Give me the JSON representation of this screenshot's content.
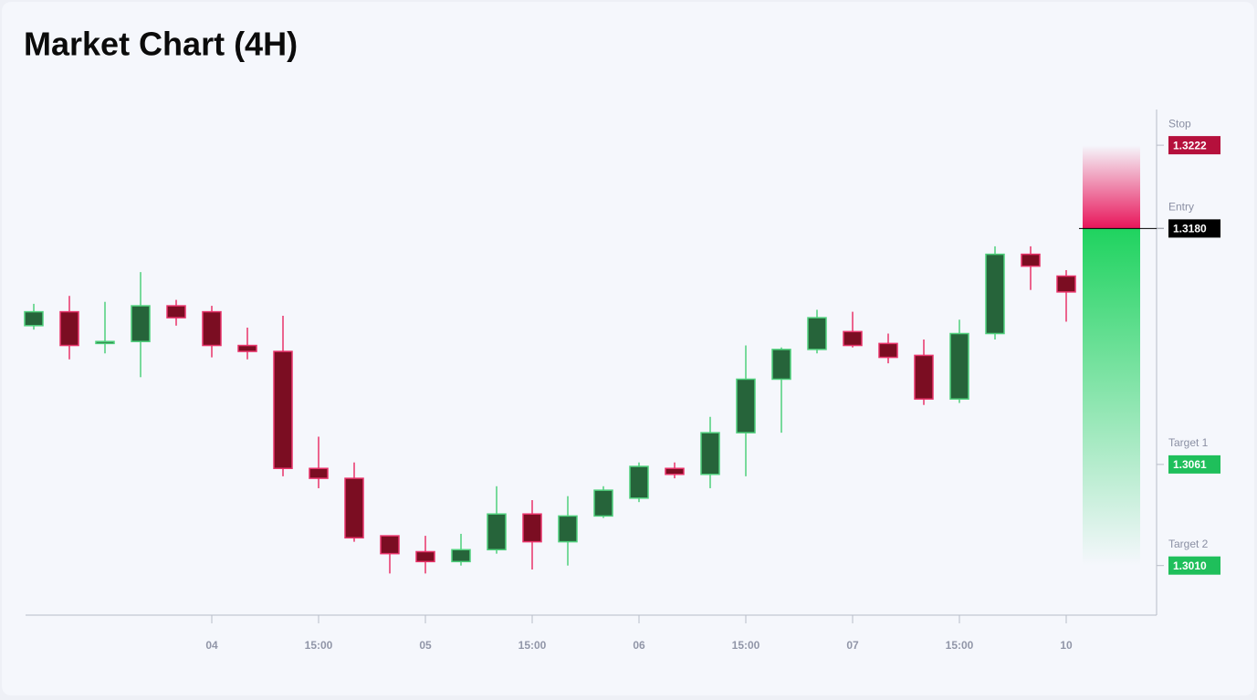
{
  "chart_data": {
    "type": "candlestick",
    "title": "Market Chart (4H)",
    "categories": [
      null,
      null,
      null,
      null,
      null,
      "04",
      null,
      null,
      "15:00",
      null,
      null,
      "05",
      null,
      null,
      "15:00",
      null,
      null,
      "06",
      null,
      null,
      "15:00",
      null,
      null,
      "07",
      null,
      null,
      "15:00",
      null,
      null,
      "10"
    ],
    "open": [
      1.3131,
      1.3138,
      1.3122,
      1.3123,
      1.3141,
      1.3138,
      1.3121,
      1.3118,
      1.3059,
      1.3054,
      1.3025,
      1.3017,
      1.3012,
      1.3018,
      1.3036,
      1.3022,
      1.3035,
      1.3044,
      1.3059,
      1.3056,
      1.3077,
      1.3104,
      1.3119,
      1.3128,
      1.3122,
      1.3116,
      1.3094,
      1.3127,
      1.3167,
      1.3156
    ],
    "high": [
      1.3142,
      1.3146,
      1.3143,
      1.3158,
      1.3144,
      1.3141,
      1.313,
      1.3136,
      1.3075,
      1.3062,
      1.3025,
      1.3025,
      1.3026,
      1.305,
      1.3043,
      1.3045,
      1.305,
      1.3062,
      1.3062,
      1.3085,
      1.3121,
      1.312,
      1.3139,
      1.3138,
      1.3127,
      1.3124,
      1.3134,
      1.3171,
      1.3171,
      1.3159
    ],
    "low": [
      1.3129,
      1.3114,
      1.3117,
      1.3105,
      1.3131,
      1.3115,
      1.3114,
      1.3055,
      1.3049,
      1.3022,
      1.3006,
      1.3006,
      1.301,
      1.3016,
      1.3008,
      1.301,
      1.3034,
      1.3042,
      1.3054,
      1.3049,
      1.3055,
      1.3077,
      1.3117,
      1.312,
      1.3112,
      1.3091,
      1.3092,
      1.3124,
      1.3149,
      1.3133
    ],
    "close": [
      1.3138,
      1.3121,
      1.3123,
      1.3141,
      1.3135,
      1.3121,
      1.3118,
      1.3059,
      1.3054,
      1.3024,
      1.3016,
      1.3012,
      1.3018,
      1.3036,
      1.3022,
      1.3035,
      1.3048,
      1.306,
      1.3056,
      1.3077,
      1.3104,
      1.3119,
      1.3135,
      1.3121,
      1.3115,
      1.3094,
      1.3127,
      1.3167,
      1.3161,
      1.3148
    ],
    "up_color": "#26643a",
    "up_wick_color": "#4fd07c",
    "down_color": "#7b0d22",
    "down_wick_color": "#e8336a",
    "ylim": [
      1.2985,
      1.324
    ],
    "levels": {
      "names": [
        "Stop",
        "Entry",
        "Target 1",
        "Target 2"
      ],
      "values": [
        1.3222,
        1.318,
        1.3061,
        1.301
      ],
      "value_labels": [
        "1.3222",
        "1.3180",
        "1.3061",
        "1.3010"
      ],
      "colors": [
        "#b5103c",
        "#000000",
        "#1fbf5b",
        "#1fbf5b"
      ]
    }
  }
}
